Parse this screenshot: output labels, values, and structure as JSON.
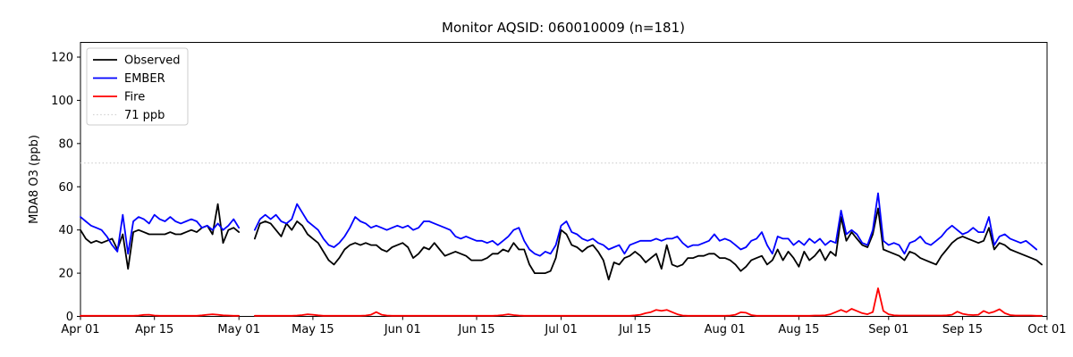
{
  "chart_data": {
    "type": "line",
    "title": "Monitor AQSID: 060010009 (n=181)",
    "ylabel": "MDA8 O3 (ppb)",
    "xlabel": "",
    "ylim": [
      0,
      126
    ],
    "yticks": [
      0,
      20,
      40,
      60,
      80,
      100,
      120
    ],
    "x_start": "Apr 01",
    "x_end": "Oct 01",
    "x_range_days": 183,
    "x_unit": "day",
    "grid": false,
    "legend_position": "upper left",
    "missing_days": [
      "May 02",
      "May 03"
    ],
    "xticks": [
      {
        "label": "Apr 01",
        "day": 0
      },
      {
        "label": "Apr 15",
        "day": 14
      },
      {
        "label": "May 01",
        "day": 30
      },
      {
        "label": "May 15",
        "day": 44
      },
      {
        "label": "Jun 01",
        "day": 61
      },
      {
        "label": "Jun 15",
        "day": 75
      },
      {
        "label": "Jul 01",
        "day": 91
      },
      {
        "label": "Jul 15",
        "day": 105
      },
      {
        "label": "Aug 01",
        "day": 122
      },
      {
        "label": "Aug 15",
        "day": 136
      },
      {
        "label": "Sep 01",
        "day": 153
      },
      {
        "label": "Sep 15",
        "day": 167
      },
      {
        "label": "Oct 01",
        "day": 183
      }
    ],
    "threshold": {
      "label": "71 ppb",
      "value": 71,
      "color": "#d3d3d3",
      "style": "dotted"
    },
    "series": [
      {
        "name": "Observed",
        "color": "#000000",
        "style": "solid",
        "values": [
          40,
          36,
          34,
          35,
          34,
          35,
          36,
          31,
          38,
          22,
          39,
          40,
          39,
          38,
          38,
          38,
          38,
          39,
          38,
          38,
          39,
          40,
          39,
          41,
          42,
          38,
          52,
          34,
          40,
          41,
          39,
          null,
          null,
          36,
          43,
          44,
          43,
          40,
          37,
          43,
          40,
          44,
          42,
          38,
          36,
          34,
          30,
          26,
          24,
          27,
          31,
          33,
          34,
          33,
          34,
          33,
          33,
          31,
          30,
          32,
          33,
          34,
          32,
          27,
          29,
          32,
          31,
          34,
          31,
          28,
          29,
          30,
          29,
          28,
          26,
          26,
          26,
          27,
          29,
          29,
          31,
          30,
          34,
          31,
          31,
          24,
          20,
          20,
          20,
          21,
          27,
          40,
          38,
          33,
          32,
          30,
          32,
          33,
          30,
          26,
          17,
          25,
          24,
          27,
          28,
          30,
          28,
          25,
          27,
          29,
          22,
          33,
          24,
          23,
          24,
          27,
          27,
          28,
          28,
          29,
          29,
          27,
          27,
          26,
          24,
          21,
          23,
          26,
          27,
          28,
          24,
          26,
          31,
          26,
          30,
          27,
          23,
          30,
          26,
          28,
          31,
          26,
          30,
          28,
          46,
          35,
          39,
          36,
          33,
          32,
          38,
          50,
          31,
          30,
          29,
          28,
          26,
          30,
          29,
          27,
          26,
          25,
          24,
          28,
          31,
          34,
          36,
          37,
          36,
          35,
          34,
          35,
          41,
          31,
          34,
          33,
          31,
          30,
          29,
          28,
          27,
          26,
          24
        ]
      },
      {
        "name": "EMBER",
        "color": "#0000ff",
        "style": "solid",
        "values": [
          46,
          44,
          42,
          41,
          40,
          37,
          33,
          30,
          47,
          29,
          44,
          46,
          45,
          43,
          47,
          45,
          44,
          46,
          44,
          43,
          44,
          45,
          44,
          41,
          42,
          40,
          43,
          40,
          42,
          45,
          41,
          null,
          null,
          40,
          45,
          47,
          45,
          47,
          44,
          43,
          45,
          52,
          48,
          44,
          42,
          40,
          36,
          33,
          32,
          34,
          37,
          41,
          46,
          44,
          43,
          41,
          42,
          41,
          40,
          41,
          42,
          41,
          42,
          40,
          41,
          44,
          44,
          43,
          42,
          41,
          40,
          37,
          36,
          37,
          36,
          35,
          35,
          34,
          35,
          33,
          35,
          37,
          40,
          41,
          35,
          31,
          29,
          28,
          30,
          29,
          33,
          42,
          44,
          39,
          38,
          36,
          35,
          36,
          34,
          33,
          31,
          32,
          33,
          29,
          33,
          34,
          35,
          35,
          35,
          36,
          35,
          36,
          36,
          37,
          34,
          32,
          33,
          33,
          34,
          35,
          38,
          35,
          36,
          35,
          33,
          31,
          32,
          35,
          36,
          39,
          33,
          29,
          37,
          36,
          36,
          33,
          35,
          33,
          36,
          34,
          36,
          33,
          35,
          34,
          49,
          38,
          40,
          38,
          34,
          33,
          40,
          57,
          35,
          33,
          34,
          33,
          29,
          34,
          35,
          37,
          34,
          33,
          35,
          37,
          40,
          42,
          40,
          38,
          39,
          41,
          39,
          39,
          46,
          33,
          37,
          38,
          36,
          35,
          34,
          35,
          33,
          31,
          null
        ]
      },
      {
        "name": "Fire",
        "color": "#ff0000",
        "style": "solid",
        "values": [
          0.3,
          0.3,
          0.3,
          0.3,
          0.3,
          0.3,
          0.3,
          0.3,
          0.3,
          0.3,
          0.3,
          0.4,
          0.7,
          0.8,
          0.4,
          0.3,
          0.3,
          0.3,
          0.3,
          0.3,
          0.3,
          0.3,
          0.3,
          0.5,
          0.8,
          1.0,
          0.8,
          0.5,
          0.4,
          0.3,
          0.3,
          null,
          null,
          0.3,
          0.3,
          0.3,
          0.3,
          0.3,
          0.3,
          0.3,
          0.3,
          0.4,
          0.6,
          1.0,
          0.8,
          0.5,
          0.3,
          0.3,
          0.3,
          0.3,
          0.3,
          0.3,
          0.3,
          0.3,
          0.4,
          0.8,
          2.0,
          0.8,
          0.4,
          0.3,
          0.3,
          0.3,
          0.3,
          0.3,
          0.3,
          0.3,
          0.3,
          0.3,
          0.3,
          0.3,
          0.3,
          0.3,
          0.3,
          0.3,
          0.3,
          0.3,
          0.3,
          0.3,
          0.3,
          0.4,
          0.6,
          1.0,
          0.6,
          0.4,
          0.3,
          0.3,
          0.3,
          0.3,
          0.3,
          0.3,
          0.3,
          0.3,
          0.3,
          0.3,
          0.3,
          0.3,
          0.3,
          0.3,
          0.3,
          0.3,
          0.3,
          0.3,
          0.3,
          0.3,
          0.3,
          0.5,
          0.8,
          1.5,
          2.0,
          3.0,
          2.6,
          3.0,
          2.0,
          1.0,
          0.4,
          0.3,
          0.3,
          0.3,
          0.3,
          0.3,
          0.3,
          0.3,
          0.3,
          0.4,
          0.8,
          1.9,
          1.7,
          0.6,
          0.3,
          0.3,
          0.3,
          0.3,
          0.3,
          0.3,
          0.3,
          0.3,
          0.3,
          0.3,
          0.3,
          0.4,
          0.4,
          0.5,
          1.0,
          2.0,
          3.0,
          2.0,
          3.5,
          2.5,
          1.5,
          1.0,
          2.0,
          13.0,
          2.5,
          1.0,
          0.5,
          0.4,
          0.4,
          0.4,
          0.4,
          0.4,
          0.4,
          0.4,
          0.4,
          0.4,
          0.5,
          0.8,
          2.2,
          1.2,
          0.8,
          0.6,
          0.8,
          2.5,
          1.5,
          2.2,
          3.3,
          1.5,
          0.6,
          0.4,
          0.4,
          0.4,
          0.4,
          0.3,
          0.3
        ]
      }
    ]
  }
}
